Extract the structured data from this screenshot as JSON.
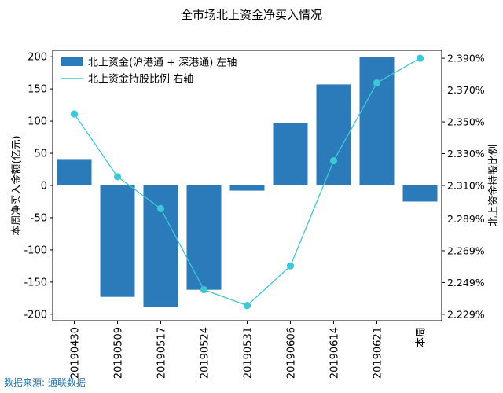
{
  "title": "全市场北上资金净买入情况",
  "source": "数据来源: 通联数据",
  "colors": {
    "bar": "#2b7bba",
    "line": "#3cc8d4",
    "marker": "#3cc8d4",
    "source_text": "#1f77b4"
  },
  "chart_data": {
    "type": "bar",
    "categories": [
      "20190430",
      "20190509",
      "20190517",
      "20190524",
      "20190531",
      "20190606",
      "20190614",
      "20190621",
      "本周"
    ],
    "series": [
      {
        "name": "北上资金(沪港通 + 深港通) 左轴",
        "type": "bar",
        "axis": "left",
        "values": [
          41,
          -173,
          -189,
          -162,
          -8,
          97,
          157,
          200,
          -25
        ]
      },
      {
        "name": "北上资金持股比例 右轴",
        "type": "line",
        "axis": "right",
        "values": [
          2.355,
          2.3155,
          2.2955,
          2.2445,
          2.2345,
          2.2595,
          2.3255,
          2.3745,
          2.39
        ]
      }
    ],
    "ylabel": "本周净买入金额(亿元)",
    "y2label": "北上资金持股比例",
    "ylim": [
      -210,
      210
    ],
    "y2lim": [
      2.225,
      2.395
    ],
    "yticks": [
      200,
      150,
      100,
      50,
      0,
      -50,
      -100,
      -150,
      -200
    ],
    "yticks_labels": [
      "200",
      "150",
      "100",
      "50",
      "0",
      "-50",
      "-100",
      "-150",
      "-200"
    ],
    "y2ticks": [
      2.39,
      2.37,
      2.35,
      2.33,
      2.31,
      2.289,
      2.269,
      2.249,
      2.229
    ],
    "y2ticks_labels": [
      "2.390%",
      "2.370%",
      "2.350%",
      "2.330%",
      "2.310%",
      "2.289%",
      "2.269%",
      "2.249%",
      "2.229%"
    ],
    "legend_position": "top-left",
    "grid": false
  }
}
